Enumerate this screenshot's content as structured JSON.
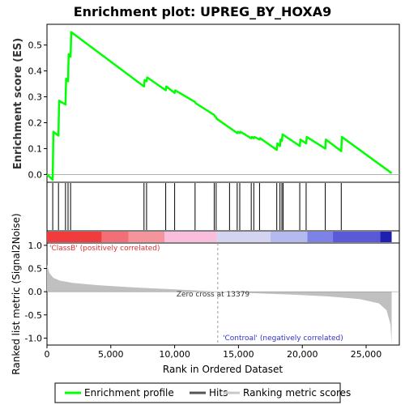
{
  "chart_data": {
    "type": "line",
    "title": "Enrichment plot: UPREG_BY_HOXA9",
    "enrichment_panel": {
      "ylabel": "Enrichment score (ES)",
      "ylim": [
        -0.03,
        0.58
      ],
      "yticks": [
        0.0,
        0.1,
        0.2,
        0.3,
        0.4,
        0.5
      ],
      "ytick_labels": [
        "0.0",
        "0.1",
        "0.2",
        "0.3",
        "0.4",
        "0.5"
      ],
      "series": [
        {
          "name": "Enrichment profile",
          "color": "#00ff00",
          "x": [
            0,
            450,
            500,
            900,
            950,
            1450,
            1500,
            1650,
            1700,
            1850,
            1900,
            7600,
            7650,
            7800,
            7850,
            9300,
            9350,
            10000,
            10050,
            11600,
            11650,
            13100,
            13150,
            13250,
            13300,
            14900,
            14950,
            15100,
            15150,
            16000,
            16050,
            16200,
            16250,
            16650,
            16700,
            18000,
            18050,
            18250,
            18300,
            18400,
            18450,
            19800,
            19850,
            20300,
            20350,
            21800,
            21850,
            23050,
            23100,
            27000
          ],
          "y": [
            0.0,
            -0.02,
            0.165,
            0.15,
            0.285,
            0.27,
            0.37,
            0.36,
            0.465,
            0.455,
            0.55,
            0.34,
            0.365,
            0.36,
            0.375,
            0.325,
            0.34,
            0.315,
            0.325,
            0.28,
            0.275,
            0.23,
            0.225,
            0.22,
            0.215,
            0.16,
            0.165,
            0.16,
            0.165,
            0.14,
            0.145,
            0.14,
            0.145,
            0.135,
            0.14,
            0.095,
            0.12,
            0.11,
            0.135,
            0.13,
            0.155,
            0.11,
            0.135,
            0.12,
            0.145,
            0.1,
            0.135,
            0.09,
            0.145,
            0.005
          ]
        }
      ]
    },
    "hits": [
      450,
      900,
      1450,
      1650,
      1850,
      7600,
      7800,
      9300,
      10000,
      11600,
      13100,
      13250,
      14300,
      14900,
      15100,
      16000,
      16200,
      16650,
      18000,
      18250,
      18400,
      18500,
      19800,
      20300,
      21800,
      23050
    ],
    "metric_panel": {
      "ylabel": "Ranked list metric (Signal2Noise)",
      "ylim": [
        -1.15,
        1.05
      ],
      "yticks": [
        1.0,
        0.5,
        0.0,
        -0.5,
        -1.0
      ],
      "ytick_labels": [
        "1.0",
        "0.5",
        "0.0",
        "-0.5",
        "-1.0"
      ],
      "zero_cross_text": "Zero cross at 13379",
      "zero_cross_x": 13379,
      "positive_label": "'ClassB' (positively correlated)",
      "negative_label": "'Controal' (negatively correlated)",
      "fill_color": "#c0c0c0",
      "profile": [
        [
          0,
          0.58
        ],
        [
          200,
          0.4
        ],
        [
          500,
          0.3
        ],
        [
          1000,
          0.24
        ],
        [
          2000,
          0.19
        ],
        [
          4000,
          0.14
        ],
        [
          7000,
          0.09
        ],
        [
          10000,
          0.05
        ],
        [
          13379,
          0.0
        ],
        [
          16000,
          -0.03
        ],
        [
          19000,
          -0.06
        ],
        [
          22000,
          -0.1
        ],
        [
          24500,
          -0.16
        ],
        [
          26000,
          -0.25
        ],
        [
          26600,
          -0.4
        ],
        [
          26900,
          -0.7
        ],
        [
          27000,
          -1.12
        ]
      ]
    },
    "xaxis": {
      "label": "Rank in Ordered Dataset",
      "xlim": [
        0,
        27600
      ],
      "xticks": [
        0,
        5000,
        10000,
        15000,
        20000,
        25000
      ],
      "xtick_labels": [
        "0",
        "5,000",
        "10,000",
        "15,000",
        "20,000",
        "25,000"
      ],
      "n_genes": 27000
    },
    "colorbar": {
      "segments": [
        {
          "from": 0,
          "to": 4300,
          "color": "#f03c3c"
        },
        {
          "from": 4300,
          "to": 6400,
          "color": "#f46e78"
        },
        {
          "from": 6400,
          "to": 9200,
          "color": "#f5949a"
        },
        {
          "from": 9200,
          "to": 13300,
          "color": "#f8bedc"
        },
        {
          "from": 13300,
          "to": 17500,
          "color": "#d2d4f2"
        },
        {
          "from": 17500,
          "to": 20400,
          "color": "#b4b9ee"
        },
        {
          "from": 20400,
          "to": 22400,
          "color": "#7c82e6"
        },
        {
          "from": 22400,
          "to": 26100,
          "color": "#5a5ad8"
        },
        {
          "from": 26100,
          "to": 27000,
          "color": "#2020b0"
        }
      ]
    },
    "legend": {
      "placement": "bottom",
      "items": [
        {
          "label": "Enrichment profile",
          "color": "#00ff00"
        },
        {
          "label": "Hits",
          "color": "#555555"
        },
        {
          "label": "Ranking metric scores",
          "color": "#c8c8c8"
        }
      ]
    }
  }
}
